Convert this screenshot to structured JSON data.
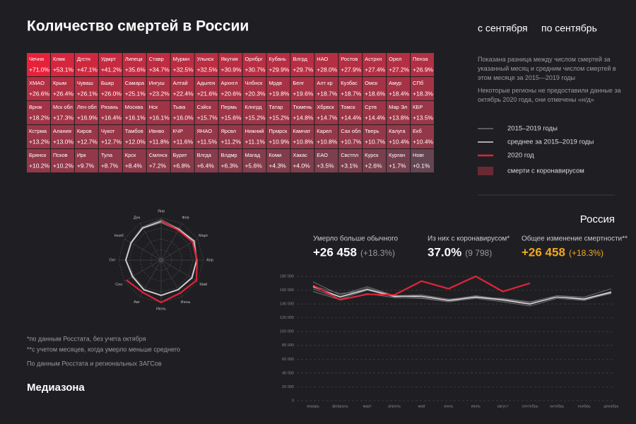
{
  "header": {
    "title": "Количество смертей в России",
    "from": "с сентября",
    "to": "по сентябрь"
  },
  "grid": {
    "cells": [
      {
        "name": "Чечня",
        "value": 71.0,
        "label": "+71.0%"
      },
      {
        "name": "Клмк",
        "value": 53.1,
        "label": "+53.1%"
      },
      {
        "name": "Дгстн",
        "value": 47.1,
        "label": "+47.1%"
      },
      {
        "name": "Удмрт",
        "value": 41.2,
        "label": "+41.2%"
      },
      {
        "name": "Липецк",
        "value": 35.6,
        "label": "+35.6%"
      },
      {
        "name": "Ставр",
        "value": 34.7,
        "label": "+34.7%"
      },
      {
        "name": "Мурмн",
        "value": 32.5,
        "label": "+32.5%"
      },
      {
        "name": "Ульнск",
        "value": 32.5,
        "label": "+32.5%"
      },
      {
        "name": "Якутия",
        "value": 30.9,
        "label": "+30.9%"
      },
      {
        "name": "Орнбрг",
        "value": 30.7,
        "label": "+30.7%"
      },
      {
        "name": "Кубань",
        "value": 29.9,
        "label": "+29.9%"
      },
      {
        "name": "Влгрд",
        "value": 29.7,
        "label": "+29.7%"
      },
      {
        "name": "НАО",
        "value": 28.0,
        "label": "+28.0%"
      },
      {
        "name": "Ростов",
        "value": 27.9,
        "label": "+27.9%"
      },
      {
        "name": "Астрхн",
        "value": 27.4,
        "label": "+27.4%"
      },
      {
        "name": "Орел",
        "value": 27.2,
        "label": "+27.2%"
      },
      {
        "name": "Пенза",
        "value": 26.9,
        "label": "+26.9%"
      },
      {
        "name": "ХМАО",
        "value": 26.6,
        "label": "+26.6%"
      },
      {
        "name": "Крым",
        "value": 26.4,
        "label": "+26.4%"
      },
      {
        "name": "Чуваш",
        "value": 26.1,
        "label": "+26.1%"
      },
      {
        "name": "Бшкр",
        "value": 26.0,
        "label": "+26.0%"
      },
      {
        "name": "Самара",
        "value": 25.1,
        "label": "+25.1%"
      },
      {
        "name": "Ингуш",
        "value": 23.2,
        "label": "+23.2%"
      },
      {
        "name": "Алтай",
        "value": 22.4,
        "label": "+22.4%"
      },
      {
        "name": "Адыгея",
        "value": 21.6,
        "label": "+21.6%"
      },
      {
        "name": "Архнгл",
        "value": 20.6,
        "label": "+20.6%"
      },
      {
        "name": "Члбнск",
        "value": 20.3,
        "label": "+20.3%"
      },
      {
        "name": "Мрдв",
        "value": 19.8,
        "label": "+19.8%"
      },
      {
        "name": "Белг",
        "value": 19.6,
        "label": "+19.6%"
      },
      {
        "name": "Алт кр",
        "value": 18.7,
        "label": "+18.7%"
      },
      {
        "name": "Кузбас",
        "value": 18.7,
        "label": "+18.7%"
      },
      {
        "name": "Омск",
        "value": 18.6,
        "label": "+18.6%"
      },
      {
        "name": "Амур",
        "value": 18.4,
        "label": "+18.4%"
      },
      {
        "name": "СПб",
        "value": 18.3,
        "label": "+18.3%"
      },
      {
        "name": "Врнж",
        "value": 18.2,
        "label": "+18.2%"
      },
      {
        "name": "Мск обл",
        "value": 17.3,
        "label": "+17.3%"
      },
      {
        "name": "Лен обл",
        "value": 16.9,
        "label": "+16.9%"
      },
      {
        "name": "Рязань",
        "value": 16.4,
        "label": "+16.4%"
      },
      {
        "name": "Москва",
        "value": 16.1,
        "label": "+16.1%"
      },
      {
        "name": "Нск",
        "value": 16.1,
        "label": "+16.1%"
      },
      {
        "name": "Тыва",
        "value": 16.0,
        "label": "+16.0%"
      },
      {
        "name": "Сзйск",
        "value": 15.7,
        "label": "+15.7%"
      },
      {
        "name": "Пермь",
        "value": 15.6,
        "label": "+15.6%"
      },
      {
        "name": "Клнгрд",
        "value": 15.2,
        "label": "+15.2%"
      },
      {
        "name": "Татар",
        "value": 15.2,
        "label": "+15.2%"
      },
      {
        "name": "Тюмень",
        "value": 14.8,
        "label": "+14.8%"
      },
      {
        "name": "Хбрвск",
        "value": 14.7,
        "label": "+14.7%"
      },
      {
        "name": "Томск",
        "value": 14.4,
        "label": "+14.4%"
      },
      {
        "name": "Сртв",
        "value": 14.4,
        "label": "+14.4%"
      },
      {
        "name": "Мар Эл",
        "value": 13.8,
        "label": "+13.8%"
      },
      {
        "name": "КБР",
        "value": 13.5,
        "label": "+13.5%"
      },
      {
        "name": "Кстрма",
        "value": 13.2,
        "label": "+13.2%"
      },
      {
        "name": "Алания",
        "value": 13.0,
        "label": "+13.0%"
      },
      {
        "name": "Киров",
        "value": 12.7,
        "label": "+12.7%"
      },
      {
        "name": "Чукот",
        "value": 12.7,
        "label": "+12.7%"
      },
      {
        "name": "Тамбов",
        "value": 12.0,
        "label": "+12.0%"
      },
      {
        "name": "Ивнво",
        "value": 11.8,
        "label": "+11.8%"
      },
      {
        "name": "КЧР",
        "value": 11.6,
        "label": "+11.6%"
      },
      {
        "name": "ЯНАО",
        "value": 11.5,
        "label": "+11.5%"
      },
      {
        "name": "Ярсвл",
        "value": 11.2,
        "label": "+11.2%"
      },
      {
        "name": "Нижний",
        "value": 11.1,
        "label": "+11.1%"
      },
      {
        "name": "Прмрск",
        "value": 10.9,
        "label": "+10.9%"
      },
      {
        "name": "Камчат",
        "value": 10.8,
        "label": "+10.8%"
      },
      {
        "name": "Карел",
        "value": 10.8,
        "label": "+10.8%"
      },
      {
        "name": "Сах обл",
        "value": 10.7,
        "label": "+10.7%"
      },
      {
        "name": "Тверь",
        "value": 10.7,
        "label": "+10.7%"
      },
      {
        "name": "Калуга",
        "value": 10.4,
        "label": "+10.4%"
      },
      {
        "name": "Екб",
        "value": 10.4,
        "label": "+10.4%"
      },
      {
        "name": "Брянск",
        "value": 10.2,
        "label": "+10.2%"
      },
      {
        "name": "Псков",
        "value": 10.2,
        "label": "+10.2%"
      },
      {
        "name": "Ирк",
        "value": 9.7,
        "label": "+9.7%"
      },
      {
        "name": "Тула",
        "value": 8.7,
        "label": "+8.7%"
      },
      {
        "name": "Крск",
        "value": 8.4,
        "label": "+8.4%"
      },
      {
        "name": "Смлнск",
        "value": 7.2,
        "label": "+7.2%"
      },
      {
        "name": "Бурят",
        "value": 6.8,
        "label": "+6.8%"
      },
      {
        "name": "Влгда",
        "value": 6.4,
        "label": "+6.4%"
      },
      {
        "name": "Влдмр",
        "value": 6.3,
        "label": "+6.3%"
      },
      {
        "name": "Магад",
        "value": 5.6,
        "label": "+5.6%"
      },
      {
        "name": "Коми",
        "value": 4.3,
        "label": "+4.3%"
      },
      {
        "name": "Хакас",
        "value": 4.0,
        "label": "+4.0%"
      },
      {
        "name": "ЕАО",
        "value": 3.5,
        "label": "+3.5%"
      },
      {
        "name": "Свстпл",
        "value": 3.1,
        "label": "+3.1%"
      },
      {
        "name": "Курск",
        "value": 2.6,
        "label": "+2.6%"
      },
      {
        "name": "Курган",
        "value": 1.7,
        "label": "+1.7%"
      },
      {
        "name": "Новг",
        "value": 0.1,
        "label": "+0.1%"
      }
    ]
  },
  "notes": [
    "Показана разница между числом смертей за указанный месяц и средним числом смертей в этом месяце за 2015—2019 годы",
    "Некоторые регионы не предоставили данные за октябрь 2020 года, они отмечены «н/д»"
  ],
  "country": "Россия",
  "stats": [
    {
      "label": "Умерло больше обычного",
      "value": "+26 458",
      "extra": "(+18.3%)"
    },
    {
      "label": "Из них с коронавирусом*",
      "value": "37.0%",
      "extra": "(9 798)"
    },
    {
      "label": "Общее изменение смертности**",
      "value": "+26 458",
      "extra": "(+18.3%)"
    }
  ],
  "footnotes": [
    "*по данным Росстата, без учета октября",
    "**с учетом месяцев, когда умерло меньше среднего",
    "По данным Росстата и региональных ЗАГСов"
  ],
  "logo": "Медиазона",
  "chart_data": [
    {
      "type": "radar",
      "categories": [
        "Янв",
        "Фев",
        "Март",
        "Апр",
        "Май",
        "Июнь",
        "Июль",
        "Авг",
        "Сен",
        "Окт",
        "Нояб",
        "Дек"
      ],
      "rlim": [
        0,
        180000
      ]
    },
    {
      "type": "line",
      "categories": [
        "январь",
        "февраль",
        "март",
        "апрель",
        "май",
        "июнь",
        "июль",
        "август",
        "сентябрь",
        "октябрь",
        "ноябрь",
        "декабрь"
      ],
      "ylim": [
        0,
        180000
      ],
      "yticks": [
        0,
        {
          "value": 20000,
          "label": "20 000"
        },
        {
          "value": 40000,
          "label": "40 000"
        },
        {
          "value": 60000,
          "label": "60 000"
        },
        {
          "value": 80000,
          "label": "80 000"
        },
        {
          "value": 100000,
          "label": "100 000"
        },
        {
          "value": 120000,
          "label": "120 000"
        },
        {
          "value": 140000,
          "label": "140 000"
        },
        {
          "value": 160000,
          "label": "160 000"
        },
        {
          "value": 180000,
          "label": "180 000"
        }
      ],
      "grid": true,
      "series": [
        {
          "name": "2015–2019 годы",
          "color": "#6e6e74",
          "lines": [
            [
              172000,
              153000,
              165000,
              152000,
              153000,
              147000,
              150000,
              148000,
              143000,
              152000,
              150000,
              162000
            ],
            [
              166000,
              155000,
              160000,
              152000,
              151000,
              146000,
              152000,
              147000,
              142000,
              150000,
              148000,
              158000
            ],
            [
              162000,
              147000,
              160000,
              150000,
              153000,
              145000,
              149000,
              145000,
              140000,
              150000,
              146000,
              155000
            ],
            [
              165000,
              151000,
              163000,
              152000,
              149000,
              143000,
              148000,
              143000,
              137000,
              148000,
              145000,
              156000
            ],
            [
              158000,
              146000,
              155000,
              149000,
              148000,
              143000,
              151000,
              145000,
              139000,
              152000,
              148000,
              155000
            ]
          ]
        },
        {
          "name": "среднее за 2015–2019 годы",
          "color": "#d8d8d8",
          "values": [
            165000,
            150000,
            161000,
            151000,
            151000,
            145000,
            150000,
            146000,
            140000,
            150000,
            147000,
            157000
          ]
        },
        {
          "name": "2020 год",
          "color": "#e0243a",
          "values": [
            167000,
            146000,
            154000,
            153000,
            173000,
            162000,
            180000,
            158000,
            170000,
            null,
            null,
            null
          ]
        },
        {
          "name": "смерти с коронавирусом",
          "color": "#6a2a34",
          "values": [
            null,
            null,
            null,
            600,
            2800,
            2500,
            2200,
            600,
            1098,
            null,
            null,
            null
          ]
        }
      ]
    }
  ]
}
